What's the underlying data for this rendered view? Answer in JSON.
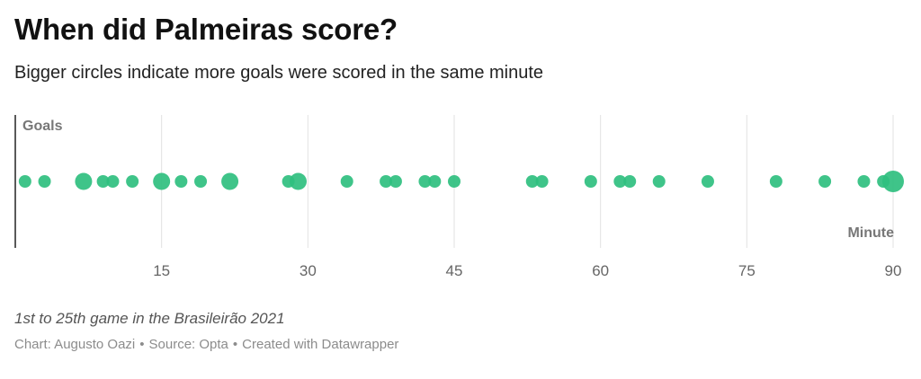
{
  "title": "When did Palmeiras score?",
  "subtitle": "Bigger circles indicate more goals were scored in the same minute",
  "notes": "1st to 25th game in the Brasileirão 2021",
  "credits": {
    "chart": "Chart: Augusto Oazi",
    "source": "Source: Opta",
    "tool": "Created with Datawrapper",
    "separator": "•"
  },
  "chart_data": {
    "type": "scatter",
    "ylabel": "Goals",
    "xlabel": "Minute",
    "xlim": [
      0,
      90
    ],
    "xticks": [
      15,
      30,
      45,
      60,
      75,
      90
    ],
    "grid": true,
    "color": "#2fbf7f",
    "points": [
      {
        "x": 1,
        "goals": 1
      },
      {
        "x": 3,
        "goals": 1
      },
      {
        "x": 7,
        "goals": 2
      },
      {
        "x": 9,
        "goals": 1
      },
      {
        "x": 10,
        "goals": 1
      },
      {
        "x": 12,
        "goals": 1
      },
      {
        "x": 15,
        "goals": 2
      },
      {
        "x": 17,
        "goals": 1
      },
      {
        "x": 19,
        "goals": 1
      },
      {
        "x": 22,
        "goals": 2
      },
      {
        "x": 28,
        "goals": 1
      },
      {
        "x": 29,
        "goals": 2
      },
      {
        "x": 34,
        "goals": 1
      },
      {
        "x": 38,
        "goals": 1
      },
      {
        "x": 39,
        "goals": 1
      },
      {
        "x": 42,
        "goals": 1
      },
      {
        "x": 43,
        "goals": 1
      },
      {
        "x": 45,
        "goals": 1
      },
      {
        "x": 53,
        "goals": 1
      },
      {
        "x": 54,
        "goals": 1
      },
      {
        "x": 59,
        "goals": 1
      },
      {
        "x": 62,
        "goals": 1
      },
      {
        "x": 63,
        "goals": 1
      },
      {
        "x": 66,
        "goals": 1
      },
      {
        "x": 71,
        "goals": 1
      },
      {
        "x": 78,
        "goals": 1
      },
      {
        "x": 83,
        "goals": 1
      },
      {
        "x": 87,
        "goals": 1
      },
      {
        "x": 89,
        "goals": 1
      },
      {
        "x": 90,
        "goals": 3
      }
    ]
  }
}
